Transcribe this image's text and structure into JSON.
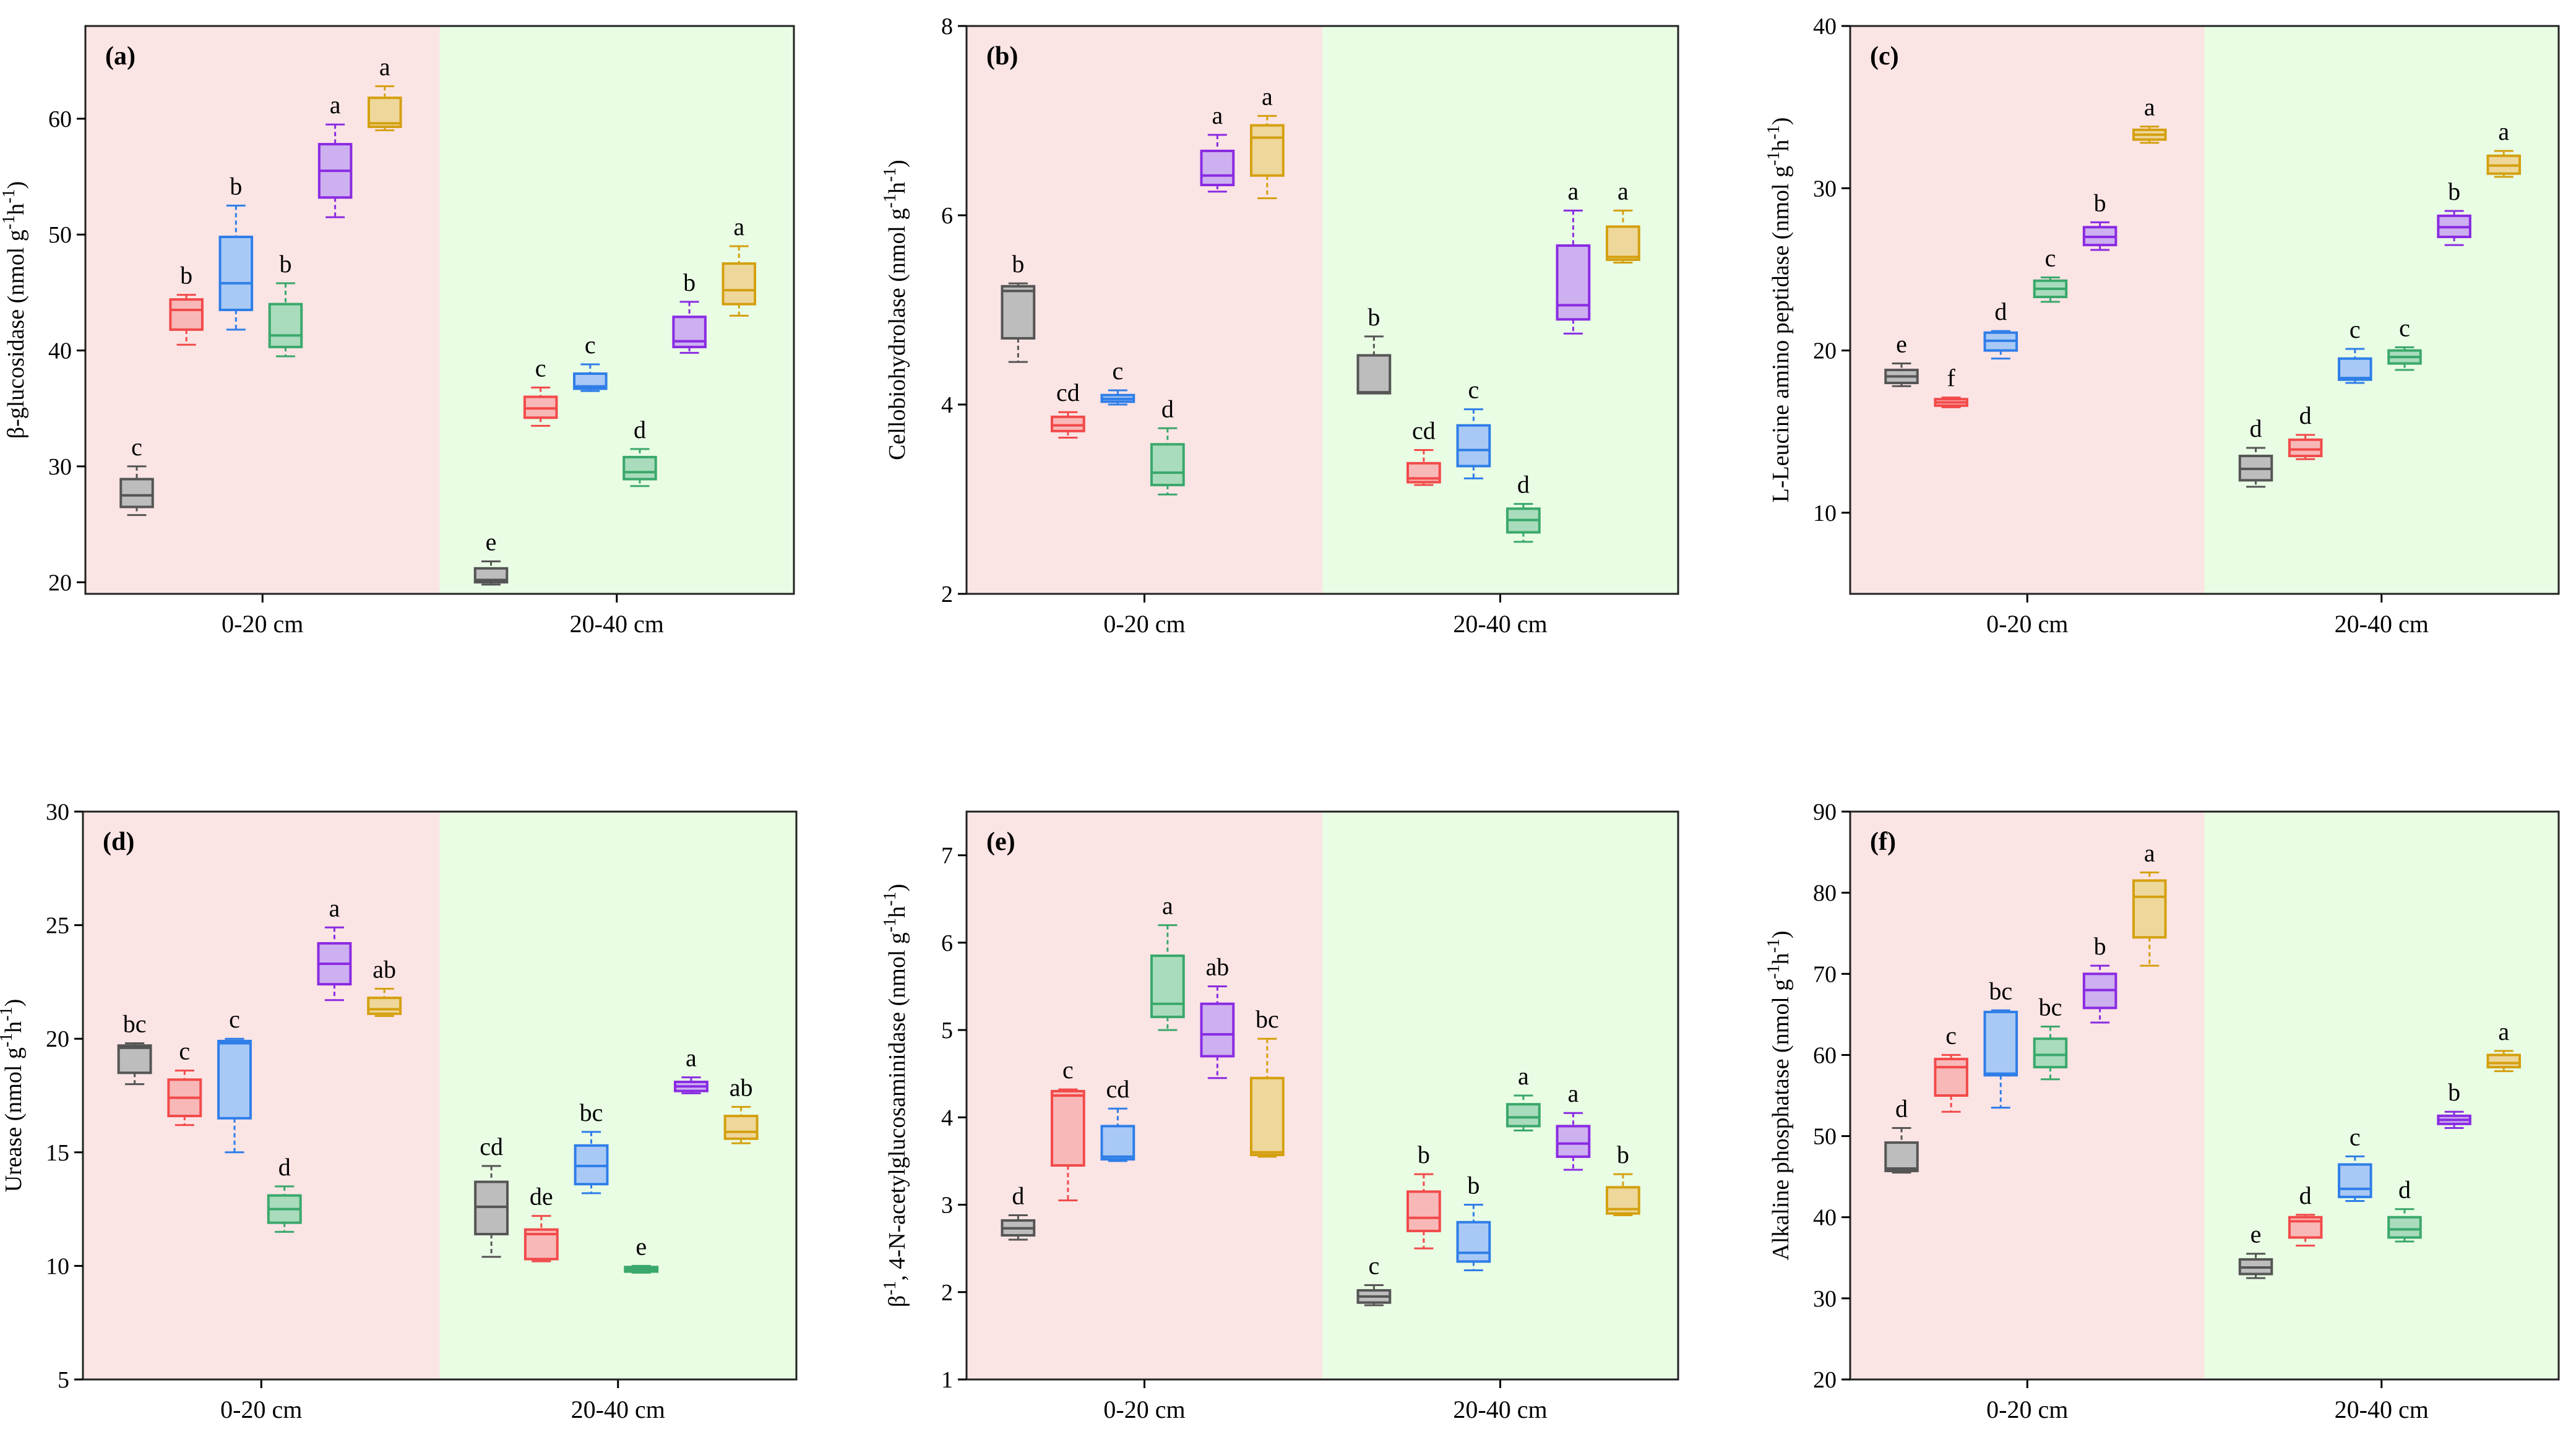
{
  "figure": {
    "groups": [
      "0-20 cm",
      "20-40 cm"
    ],
    "colors": {
      "bg_left": "#fbe4e4",
      "bg_right": "#e9fce4",
      "series": [
        "#555555",
        "#f24a4a",
        "#2f7ee8",
        "#3aa86b",
        "#8a2be2",
        "#d4a010"
      ],
      "series_fill": [
        "#bdbdbd",
        "#f9b8b8",
        "#a9c9f5",
        "#a9dcbc",
        "#cdb0f0",
        "#eed79a"
      ]
    }
  },
  "chart_data": [
    {
      "type": "box",
      "panel": "(a)",
      "ylabel": "β-glucosidase (nmol g-1h-1)",
      "ylim": [
        19,
        68
      ],
      "yticks": [
        20,
        30,
        40,
        50,
        60
      ],
      "groups": [
        "0-20 cm",
        "20-40 cm"
      ],
      "boxes": [
        [
          {
            "min": 25.8,
            "q1": 26.5,
            "median": 27.5,
            "q3": 28.9,
            "max": 30.0,
            "letter": "c"
          },
          {
            "min": 40.5,
            "q1": 41.8,
            "median": 43.5,
            "q3": 44.4,
            "max": 44.8,
            "letter": "b"
          },
          {
            "min": 41.8,
            "q1": 43.5,
            "median": 45.8,
            "q3": 49.8,
            "max": 52.5,
            "letter": "b"
          },
          {
            "min": 39.5,
            "q1": 40.3,
            "median": 41.3,
            "q3": 44.0,
            "max": 45.8,
            "letter": "b"
          },
          {
            "min": 51.5,
            "q1": 53.2,
            "median": 55.5,
            "q3": 57.8,
            "max": 59.5,
            "letter": "a"
          },
          {
            "min": 59.0,
            "q1": 59.3,
            "median": 59.6,
            "q3": 61.8,
            "max": 62.8,
            "letter": "a"
          }
        ],
        [
          {
            "min": 19.8,
            "q1": 20.0,
            "median": 20.2,
            "q3": 21.2,
            "max": 21.8,
            "letter": "e"
          },
          {
            "min": 33.5,
            "q1": 34.2,
            "median": 35.0,
            "q3": 36.0,
            "max": 36.8,
            "letter": "c"
          },
          {
            "min": 36.5,
            "q1": 36.7,
            "median": 36.9,
            "q3": 38.0,
            "max": 38.8,
            "letter": "c"
          },
          {
            "min": 28.3,
            "q1": 28.9,
            "median": 29.5,
            "q3": 30.8,
            "max": 31.5,
            "letter": "d"
          },
          {
            "min": 39.8,
            "q1": 40.3,
            "median": 40.8,
            "q3": 42.9,
            "max": 44.2,
            "letter": "b"
          },
          {
            "min": 43.0,
            "q1": 44.0,
            "median": 45.2,
            "q3": 47.5,
            "max": 49.0,
            "letter": "a"
          }
        ]
      ]
    },
    {
      "type": "box",
      "panel": "(b)",
      "ylabel": "Cellobiohydrolase (nmol g-1h-1)",
      "ylim": [
        2,
        8
      ],
      "yticks": [
        2,
        4,
        6,
        8
      ],
      "groups": [
        "0-20 cm",
        "20-40 cm"
      ],
      "boxes": [
        [
          {
            "min": 4.45,
            "q1": 4.7,
            "median": 5.2,
            "q3": 5.25,
            "max": 5.28,
            "letter": "b"
          },
          {
            "min": 3.65,
            "q1": 3.72,
            "median": 3.78,
            "q3": 3.87,
            "max": 3.92,
            "letter": "cd"
          },
          {
            "min": 4.0,
            "q1": 4.03,
            "median": 4.06,
            "q3": 4.1,
            "max": 4.15,
            "letter": "c"
          },
          {
            "min": 3.05,
            "q1": 3.15,
            "median": 3.28,
            "q3": 3.58,
            "max": 3.75,
            "letter": "d"
          },
          {
            "min": 6.25,
            "q1": 6.32,
            "median": 6.42,
            "q3": 6.68,
            "max": 6.85,
            "letter": "a"
          },
          {
            "min": 6.18,
            "q1": 6.42,
            "median": 6.82,
            "q3": 6.95,
            "max": 7.05,
            "letter": "a"
          }
        ],
        [
          {
            "min": 4.12,
            "q1": 4.12,
            "median": 4.13,
            "q3": 4.52,
            "max": 4.72,
            "letter": "b"
          },
          {
            "min": 3.15,
            "q1": 3.18,
            "median": 3.22,
            "q3": 3.38,
            "max": 3.52,
            "letter": "cd"
          },
          {
            "min": 3.22,
            "q1": 3.35,
            "median": 3.52,
            "q3": 3.78,
            "max": 3.95,
            "letter": "c"
          },
          {
            "min": 2.55,
            "q1": 2.65,
            "median": 2.78,
            "q3": 2.9,
            "max": 2.95,
            "letter": "d"
          },
          {
            "min": 4.75,
            "q1": 4.9,
            "median": 5.05,
            "q3": 5.68,
            "max": 6.05,
            "letter": "a"
          },
          {
            "min": 5.5,
            "q1": 5.53,
            "median": 5.56,
            "q3": 5.88,
            "max": 6.05,
            "letter": "a"
          }
        ]
      ]
    },
    {
      "type": "box",
      "panel": "(c)",
      "ylabel": "L-Leucine amino peptidase (nmol g-1h-1)",
      "ylim": [
        5,
        40
      ],
      "yticks": [
        10,
        20,
        30,
        40
      ],
      "groups": [
        "0-20 cm",
        "20-40 cm"
      ],
      "boxes": [
        [
          {
            "min": 17.8,
            "q1": 18.0,
            "median": 18.4,
            "q3": 18.8,
            "max": 19.2,
            "letter": "e"
          },
          {
            "min": 16.5,
            "q1": 16.6,
            "median": 16.8,
            "q3": 17.0,
            "max": 17.1,
            "letter": "f"
          },
          {
            "min": 19.5,
            "q1": 20.0,
            "median": 20.6,
            "q3": 21.1,
            "max": 21.2,
            "letter": "d"
          },
          {
            "min": 23.0,
            "q1": 23.3,
            "median": 23.8,
            "q3": 24.3,
            "max": 24.5,
            "letter": "c"
          },
          {
            "min": 26.2,
            "q1": 26.5,
            "median": 27.0,
            "q3": 27.6,
            "max": 27.9,
            "letter": "b"
          },
          {
            "min": 32.8,
            "q1": 33.0,
            "median": 33.3,
            "q3": 33.6,
            "max": 33.8,
            "letter": "a"
          }
        ],
        [
          {
            "min": 11.6,
            "q1": 12.0,
            "median": 12.7,
            "q3": 13.5,
            "max": 14.0,
            "letter": "d"
          },
          {
            "min": 13.3,
            "q1": 13.5,
            "median": 13.9,
            "q3": 14.5,
            "max": 14.8,
            "letter": "d"
          },
          {
            "min": 18.0,
            "q1": 18.2,
            "median": 18.3,
            "q3": 19.5,
            "max": 20.1,
            "letter": "c"
          },
          {
            "min": 18.8,
            "q1": 19.2,
            "median": 19.6,
            "q3": 20.0,
            "max": 20.2,
            "letter": "c"
          },
          {
            "min": 26.5,
            "q1": 27.0,
            "median": 27.6,
            "q3": 28.3,
            "max": 28.6,
            "letter": "b"
          },
          {
            "min": 30.7,
            "q1": 30.9,
            "median": 31.4,
            "q3": 32.0,
            "max": 32.3,
            "letter": "a"
          }
        ]
      ]
    },
    {
      "type": "box",
      "panel": "(d)",
      "ylabel": "Urease (nmol g-1h-1)",
      "ylim": [
        5,
        30
      ],
      "yticks": [
        5,
        10,
        15,
        20,
        25,
        30
      ],
      "groups": [
        "0-20 cm",
        "20-40 cm"
      ],
      "boxes": [
        [
          {
            "min": 18.0,
            "q1": 18.5,
            "median": 19.6,
            "q3": 19.7,
            "max": 19.8,
            "letter": "bc"
          },
          {
            "min": 16.2,
            "q1": 16.6,
            "median": 17.4,
            "q3": 18.2,
            "max": 18.6,
            "letter": "c"
          },
          {
            "min": 15.0,
            "q1": 16.5,
            "median": 19.8,
            "q3": 19.9,
            "max": 20.0,
            "letter": "c"
          },
          {
            "min": 11.5,
            "q1": 11.9,
            "median": 12.5,
            "q3": 13.1,
            "max": 13.5,
            "letter": "d"
          },
          {
            "min": 21.7,
            "q1": 22.4,
            "median": 23.3,
            "q3": 24.2,
            "max": 24.9,
            "letter": "a"
          },
          {
            "min": 21.0,
            "q1": 21.1,
            "median": 21.3,
            "q3": 21.8,
            "max": 22.2,
            "letter": "ab"
          }
        ],
        [
          {
            "min": 10.4,
            "q1": 11.4,
            "median": 12.6,
            "q3": 13.7,
            "max": 14.4,
            "letter": "cd"
          },
          {
            "min": 10.2,
            "q1": 10.3,
            "median": 11.4,
            "q3": 11.6,
            "max": 12.2,
            "letter": "de"
          },
          {
            "min": 13.2,
            "q1": 13.6,
            "median": 14.4,
            "q3": 15.3,
            "max": 15.9,
            "letter": "bc"
          },
          {
            "min": 9.7,
            "q1": 9.75,
            "median": 9.85,
            "q3": 9.95,
            "max": 10.0,
            "letter": "e"
          },
          {
            "min": 17.6,
            "q1": 17.7,
            "median": 17.9,
            "q3": 18.1,
            "max": 18.3,
            "letter": "a"
          },
          {
            "min": 15.4,
            "q1": 15.6,
            "median": 15.9,
            "q3": 16.6,
            "max": 17.0,
            "letter": "ab"
          }
        ]
      ]
    },
    {
      "type": "box",
      "panel": "(e)",
      "ylabel": "β-1, 4-N-acetylglucosaminidase (nmol g-1h-1)",
      "ylim": [
        1,
        7.5
      ],
      "yticks": [
        1,
        2,
        3,
        4,
        5,
        6,
        7
      ],
      "groups": [
        "0-20 cm",
        "20-40 cm"
      ],
      "boxes": [
        [
          {
            "min": 2.6,
            "q1": 2.65,
            "median": 2.73,
            "q3": 2.82,
            "max": 2.88,
            "letter": "d"
          },
          {
            "min": 3.05,
            "q1": 3.45,
            "median": 4.25,
            "q3": 4.3,
            "max": 4.32,
            "letter": "c"
          },
          {
            "min": 3.5,
            "q1": 3.52,
            "median": 3.55,
            "q3": 3.9,
            "max": 4.1,
            "letter": "cd"
          },
          {
            "min": 5.0,
            "q1": 5.15,
            "median": 5.3,
            "q3": 5.85,
            "max": 6.2,
            "letter": "a"
          },
          {
            "min": 4.45,
            "q1": 4.7,
            "median": 4.95,
            "q3": 5.3,
            "max": 5.5,
            "letter": "ab"
          },
          {
            "min": 3.55,
            "q1": 3.57,
            "median": 3.6,
            "q3": 4.45,
            "max": 4.9,
            "letter": "bc"
          }
        ],
        [
          {
            "min": 1.85,
            "q1": 1.88,
            "median": 1.95,
            "q3": 2.02,
            "max": 2.08,
            "letter": "c"
          },
          {
            "min": 2.5,
            "q1": 2.7,
            "median": 2.85,
            "q3": 3.15,
            "max": 3.35,
            "letter": "b"
          },
          {
            "min": 2.25,
            "q1": 2.35,
            "median": 2.45,
            "q3": 2.8,
            "max": 3.0,
            "letter": "b"
          },
          {
            "min": 3.85,
            "q1": 3.9,
            "median": 4.0,
            "q3": 4.15,
            "max": 4.25,
            "letter": "a"
          },
          {
            "min": 3.4,
            "q1": 3.55,
            "median": 3.7,
            "q3": 3.9,
            "max": 4.05,
            "letter": "a"
          },
          {
            "min": 2.88,
            "q1": 2.9,
            "median": 2.95,
            "q3": 3.2,
            "max": 3.35,
            "letter": "b"
          }
        ]
      ]
    },
    {
      "type": "box",
      "panel": "(f)",
      "ylabel": "Alkaline phosphatase (nmol g-1h-1)",
      "ylim": [
        20,
        90
      ],
      "yticks": [
        20,
        30,
        40,
        50,
        60,
        70,
        80,
        90
      ],
      "groups": [
        "0-20 cm",
        "20-40 cm"
      ],
      "boxes": [
        [
          {
            "min": 45.5,
            "q1": 45.7,
            "median": 46.0,
            "q3": 49.2,
            "max": 51.0,
            "letter": "d"
          },
          {
            "min": 53.0,
            "q1": 55.0,
            "median": 58.5,
            "q3": 59.5,
            "max": 60.0,
            "letter": "c"
          },
          {
            "min": 53.5,
            "q1": 57.5,
            "median": 57.7,
            "q3": 65.3,
            "max": 65.5,
            "letter": "bc"
          },
          {
            "min": 57.0,
            "q1": 58.5,
            "median": 60.0,
            "q3": 62.0,
            "max": 63.5,
            "letter": "bc"
          },
          {
            "min": 64.0,
            "q1": 65.8,
            "median": 68.0,
            "q3": 70.0,
            "max": 71.0,
            "letter": "b"
          },
          {
            "min": 71.0,
            "q1": 74.5,
            "median": 79.5,
            "q3": 81.5,
            "max": 82.5,
            "letter": "a"
          }
        ],
        [
          {
            "min": 32.5,
            "q1": 33.0,
            "median": 33.8,
            "q3": 34.8,
            "max": 35.5,
            "letter": "e"
          },
          {
            "min": 36.5,
            "q1": 37.5,
            "median": 39.5,
            "q3": 40.0,
            "max": 40.3,
            "letter": "d"
          },
          {
            "min": 42.0,
            "q1": 42.5,
            "median": 43.5,
            "q3": 46.5,
            "max": 47.5,
            "letter": "c"
          },
          {
            "min": 37.0,
            "q1": 37.5,
            "median": 38.5,
            "q3": 40.0,
            "max": 41.0,
            "letter": "d"
          },
          {
            "min": 51.0,
            "q1": 51.5,
            "median": 52.0,
            "q3": 52.5,
            "max": 53.0,
            "letter": "b"
          },
          {
            "min": 58.0,
            "q1": 58.5,
            "median": 59.0,
            "q3": 60.0,
            "max": 60.5,
            "letter": "a"
          }
        ]
      ]
    }
  ]
}
